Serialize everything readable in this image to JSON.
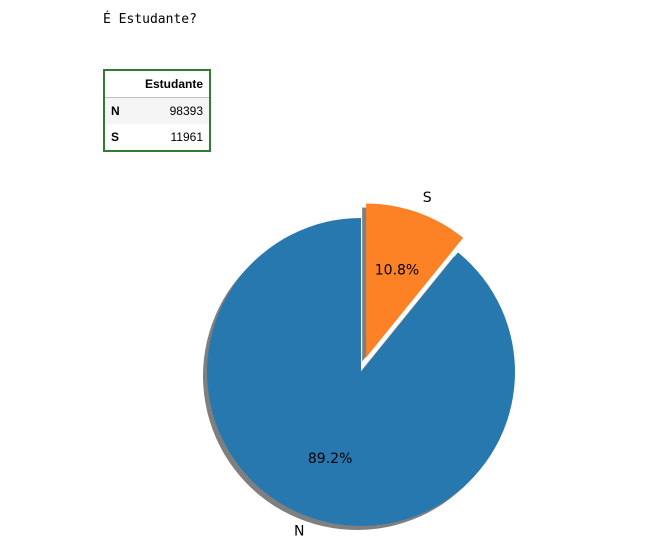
{
  "cell_output": {
    "text": "É Estudante?"
  },
  "dataframe": {
    "column_header": "Estudante",
    "rows": [
      {
        "index": "N",
        "value": "98393"
      },
      {
        "index": "S",
        "value": "11961"
      }
    ]
  },
  "chart_data": {
    "type": "pie",
    "categories": [
      "N",
      "S"
    ],
    "values": [
      98393,
      11961
    ],
    "percent_labels": [
      "89.2%",
      "10.8%"
    ],
    "colors": [
      "#2878b0",
      "#fd8125"
    ],
    "explode": [
      0,
      1
    ],
    "shadow": true,
    "start_angle_deg": 90
  }
}
